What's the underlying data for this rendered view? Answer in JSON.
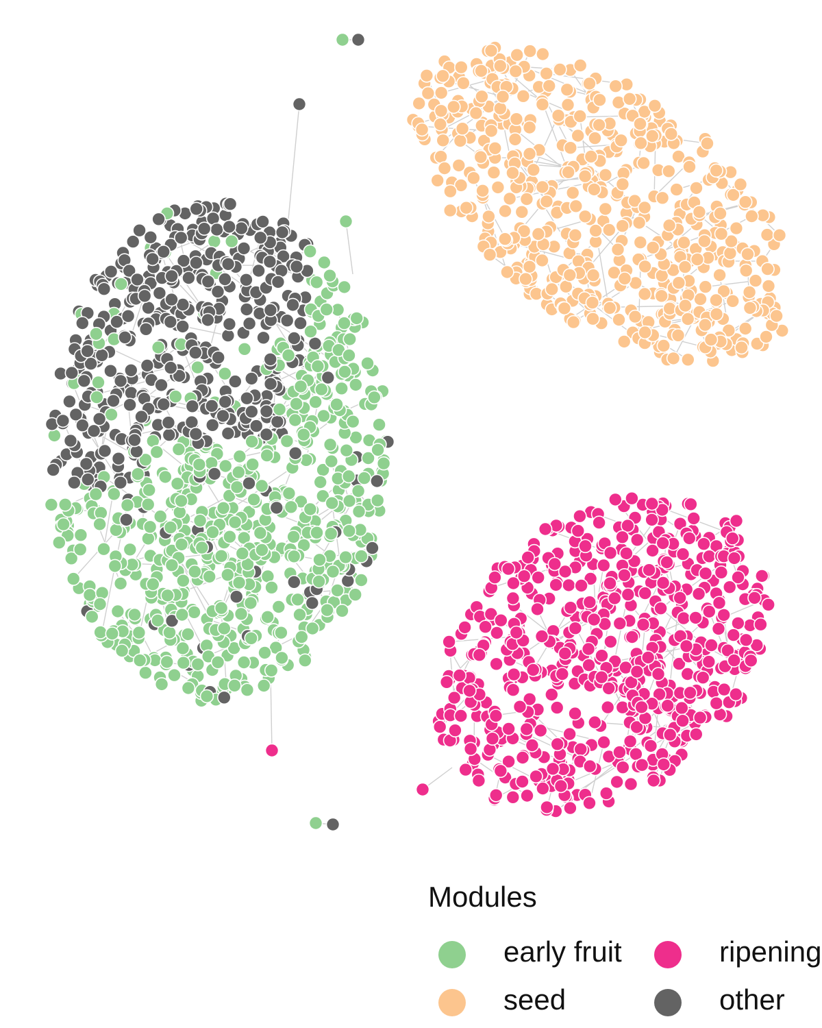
{
  "chart_data": {
    "type": "network",
    "legend": {
      "title": "Modules",
      "placement": "bottom-right",
      "entries": [
        {
          "key": "early_fruit",
          "label": "early fruit",
          "color": "#8fd08f"
        },
        {
          "key": "ripening",
          "label": "ripening",
          "color": "#ee2e8c"
        },
        {
          "key": "seed",
          "label": "seed",
          "color": "#fcc58e"
        },
        {
          "key": "other",
          "label": "other",
          "color": "#636363"
        }
      ]
    },
    "edge_color": "#cfcfcf",
    "node_outline": "#ffffff",
    "components": [
      {
        "name": "mixed",
        "modules": [
          "other",
          "early_fruit"
        ],
        "approx_nodes": 1100
      },
      {
        "name": "seed",
        "modules": [
          "seed"
        ],
        "approx_nodes": 550
      },
      {
        "name": "ripening",
        "modules": [
          "ripening"
        ],
        "approx_nodes": 600
      },
      {
        "name": "pair-1",
        "modules": [
          "early_fruit",
          "other"
        ],
        "approx_nodes": 2
      },
      {
        "name": "pair-2",
        "modules": [
          "early_fruit",
          "other"
        ],
        "approx_nodes": 2
      }
    ]
  }
}
